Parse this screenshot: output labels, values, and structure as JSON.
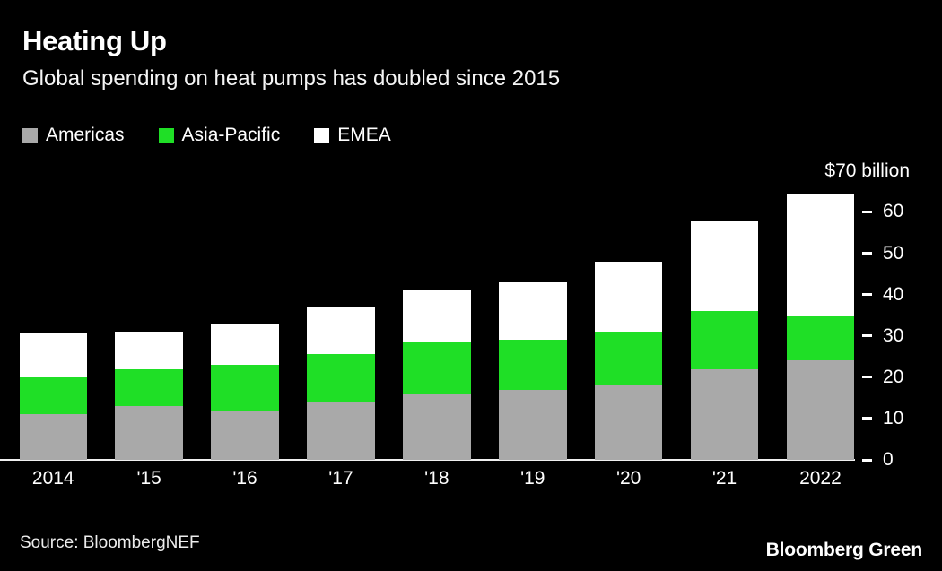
{
  "header": {
    "title": "Heating Up",
    "subtitle": "Global spending on heat pumps has doubled since 2015"
  },
  "legend": [
    {
      "label": "Americas",
      "color": "#a9a9a9"
    },
    {
      "label": "Asia-Pacific",
      "color": "#1fdf26"
    },
    {
      "label": "EMEA",
      "color": "#ffffff"
    }
  ],
  "chart_data": {
    "type": "bar",
    "stacked": true,
    "title": "Heating Up",
    "subtitle": "Global spending on heat pumps has doubled since 2015",
    "unit_label": "$70 billion",
    "categories": [
      "2014",
      "'15",
      "'16",
      "'17",
      "'18",
      "'19",
      "'20",
      "'21",
      "2022"
    ],
    "series": [
      {
        "name": "Americas",
        "color": "#a9a9a9",
        "values": [
          11,
          13,
          12,
          14,
          16,
          17,
          18,
          22,
          24
        ]
      },
      {
        "name": "Asia-Pacific",
        "color": "#1fdf26",
        "values": [
          9,
          9,
          11,
          11.5,
          12.5,
          12,
          13,
          14,
          11
        ]
      },
      {
        "name": "EMEA",
        "color": "#ffffff",
        "values": [
          10.5,
          9,
          10,
          11.5,
          12.5,
          14,
          17,
          22,
          29.5
        ]
      }
    ],
    "totals": [
      30.5,
      31,
      33,
      37,
      41,
      43,
      48,
      58,
      64.5
    ],
    "ylabel": "",
    "xlabel": "",
    "ylim": [
      0,
      70
    ],
    "yticks": [
      0,
      10,
      20,
      30,
      40,
      50,
      60
    ],
    "grid": false,
    "legend_position": "top-left",
    "axis_side": "right"
  },
  "footer": {
    "source": "Source: BloombergNEF",
    "brand": "Bloomberg Green"
  },
  "colors": {
    "background": "#000000",
    "text": "#ffffff",
    "axis_line": "#f0f0f0",
    "americas": "#a9a9a9",
    "asia_pacific": "#1fdf26",
    "emea": "#ffffff"
  }
}
